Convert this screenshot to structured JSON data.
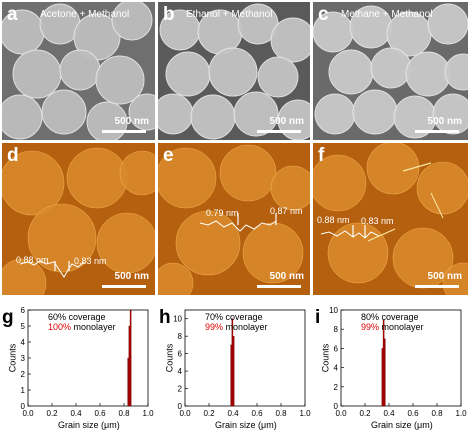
{
  "sem_panels": [
    {
      "label": "a",
      "caption": "Acetone + Methanol",
      "scale": "500 nm",
      "bg": "#6f6f6f",
      "grain": "#bdbdbd"
    },
    {
      "label": "b",
      "caption": "Ethanol + Methanol",
      "scale": "500 nm",
      "bg": "#5a5a5a",
      "grain": "#c4c4c4"
    },
    {
      "label": "c",
      "caption": "Methane + Methanol",
      "scale": "500 nm",
      "bg": "#6a6a6a",
      "grain": "#c9c9c9"
    }
  ],
  "afm_panels": [
    {
      "label": "d",
      "scale": "500 nm",
      "heights": [
        "0.88 nm",
        "0.83 nm"
      ]
    },
    {
      "label": "e",
      "scale": "500 nm",
      "heights": [
        "0.79 nm",
        "0.87 nm"
      ]
    },
    {
      "label": "f",
      "scale": "500 nm",
      "heights": [
        "0.88 nm",
        "0.83 nm"
      ]
    }
  ],
  "hist_panels": [
    {
      "label": "g",
      "coverage": "60% coverage",
      "mono_pct": "100%",
      "mono_text": "monolayer"
    },
    {
      "label": "h",
      "coverage": "70% coverage",
      "mono_pct": "99%",
      "mono_text": "monolayer"
    },
    {
      "label": "i",
      "coverage": "80% coverage",
      "mono_pct": "99%",
      "mono_text": "monolayer"
    }
  ],
  "colors": {
    "bar": "#b00000",
    "highlight": "#e00000"
  },
  "chart_data": [
    {
      "type": "bar",
      "xlabel": "Grain size (μm)",
      "ylabel": "Counts",
      "xlim": [
        0.0,
        1.0
      ],
      "ylim": [
        0,
        6
      ],
      "xticks": [
        "0.0",
        "0.2",
        "0.4",
        "0.6",
        "0.8",
        "1.0"
      ],
      "yticks": [
        "0",
        "1",
        "2",
        "3",
        "4",
        "5",
        "6"
      ],
      "x": [
        0.835,
        0.845,
        0.855
      ],
      "values": [
        3,
        5,
        6
      ]
    },
    {
      "type": "bar",
      "xlabel": "Grain size (μm)",
      "ylabel": "Counts",
      "xlim": [
        0.0,
        1.0
      ],
      "ylim": [
        0,
        11
      ],
      "xticks": [
        "0.0",
        "0.2",
        "0.4",
        "0.6",
        "0.8",
        "1.0"
      ],
      "yticks": [
        "0",
        "2",
        "4",
        "6",
        "8",
        "10"
      ],
      "x": [
        0.385,
        0.395,
        0.405
      ],
      "values": [
        7,
        10,
        8
      ]
    },
    {
      "type": "bar",
      "xlabel": "Grain size (μm)",
      "ylabel": "Counts",
      "xlim": [
        0.0,
        1.0
      ],
      "ylim": [
        0,
        10
      ],
      "xticks": [
        "0.0",
        "0.2",
        "0.4",
        "0.6",
        "0.8",
        "1.0"
      ],
      "yticks": [
        "0",
        "2",
        "4",
        "6",
        "8",
        "10"
      ],
      "x": [
        0.345,
        0.355,
        0.365
      ],
      "values": [
        6,
        9,
        7
      ]
    }
  ]
}
